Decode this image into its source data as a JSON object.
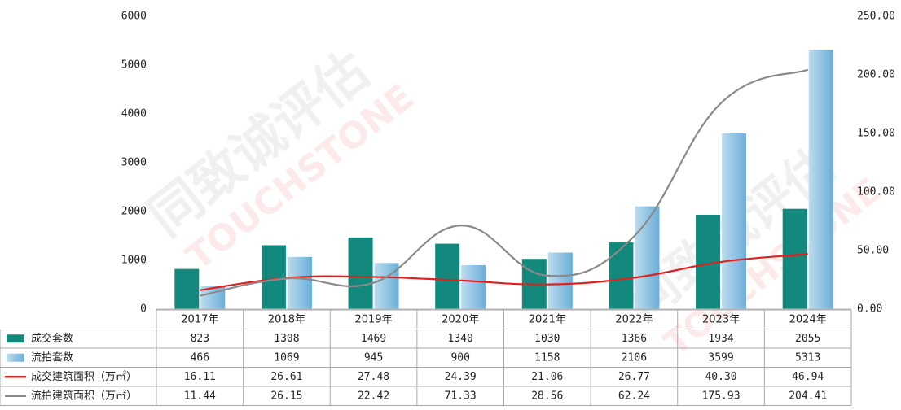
{
  "chart_data": {
    "type": "bar_line_table",
    "watermark": [
      "同致诚评估",
      "TOUCHSTONE"
    ],
    "categories": [
      "2017年",
      "2018年",
      "2019年",
      "2020年",
      "2021年",
      "2022年",
      "2023年",
      "2024年"
    ],
    "ylim": [
      0,
      6000
    ],
    "yticks": [
      0,
      1000,
      2000,
      3000,
      4000,
      5000,
      6000
    ],
    "y2lim": [
      0,
      250
    ],
    "y2ticks": [
      {
        "value": 0,
        "label": "0.00"
      },
      {
        "value": 50,
        "label": "50.00"
      },
      {
        "value": 100,
        "label": "100.00"
      },
      {
        "value": 150,
        "label": "150.00"
      },
      {
        "value": 200,
        "label": "200.00"
      },
      {
        "value": 250,
        "label": "250.00"
      }
    ],
    "series": [
      {
        "name": "成交套数",
        "type": "bar",
        "color": "#12897c",
        "values": [
          823,
          1308,
          1469,
          1340,
          1030,
          1366,
          1934,
          2055
        ]
      },
      {
        "name": "流拍套数",
        "type": "bar",
        "color": "#8fc3e3",
        "values": [
          466,
          1069,
          945,
          900,
          1158,
          2106,
          3599,
          5313
        ]
      },
      {
        "name": "成交建筑面积（万㎡）",
        "type": "line",
        "axis": "y2",
        "color": "#e0201c",
        "values": [
          16.11,
          26.61,
          27.48,
          24.39,
          21.06,
          26.77,
          40.3,
          46.94
        ],
        "value_labels": [
          "16.11",
          "26.61",
          "27.48",
          "24.39",
          "21.06",
          "26.77",
          "40.30",
          "46.94"
        ]
      },
      {
        "name": "流拍建筑面积（万㎡）",
        "type": "line",
        "axis": "y2",
        "color": "#8a8a8a",
        "values": [
          11.44,
          26.15,
          22.42,
          71.33,
          28.56,
          62.24,
          175.93,
          204.41
        ],
        "value_labels": [
          "11.44",
          "26.15",
          "22.42",
          "71.33",
          "28.56",
          "62.24",
          "175.93",
          "204.41"
        ]
      }
    ]
  }
}
